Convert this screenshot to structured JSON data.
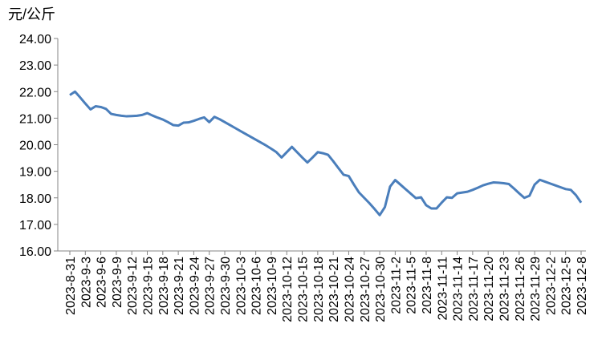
{
  "chart_data": {
    "type": "line",
    "y_label": "元/公斤",
    "categories": [
      "2023-8-31",
      null,
      null,
      "2023-9-3",
      null,
      null,
      "2023-9-6",
      null,
      null,
      "2023-9-9",
      null,
      null,
      "2023-9-12",
      null,
      null,
      "2023-9-15",
      null,
      null,
      "2023-9-18",
      null,
      null,
      "2023-9-21",
      null,
      null,
      "2023-9-24",
      null,
      null,
      "2023-9-27",
      null,
      null,
      "2023-9-30",
      null,
      null,
      "2023-10-3",
      null,
      null,
      "2023-10-6",
      null,
      null,
      "2023-10-9",
      null,
      null,
      "2023-10-12",
      null,
      null,
      "2023-10-15",
      null,
      null,
      "2023-10-18",
      null,
      null,
      "2023-10-21",
      null,
      null,
      "2023-10-24",
      null,
      null,
      "2023-10-27",
      null,
      null,
      "2023-10-30",
      null,
      null,
      "2023-11-2",
      null,
      null,
      "2023-11-5",
      null,
      null,
      "2023-11-8",
      null,
      null,
      "2023-11-11",
      null,
      null,
      "2023-11-14",
      null,
      null,
      "2023-11-17",
      null,
      null,
      "2023-11-20",
      null,
      null,
      "2023-11-23",
      null,
      null,
      "2023-11-26",
      null,
      null,
      "2023-11-29",
      null,
      null,
      "2023-12-2",
      null,
      null,
      "2023-12-5",
      null,
      null,
      "2023-12-8"
    ],
    "values": [
      21.87,
      22.0,
      21.78,
      21.55,
      21.33,
      21.45,
      21.42,
      21.35,
      21.16,
      21.12,
      21.09,
      21.07,
      21.08,
      21.09,
      21.12,
      21.19,
      21.1,
      21.02,
      20.95,
      20.85,
      20.74,
      20.72,
      20.83,
      20.84,
      20.9,
      20.97,
      21.03,
      20.85,
      21.05,
      20.96,
      20.85,
      20.74,
      20.63,
      20.52,
      20.41,
      20.3,
      20.19,
      20.08,
      19.97,
      19.85,
      19.72,
      19.52,
      19.72,
      19.92,
      19.72,
      19.52,
      19.33,
      19.52,
      19.72,
      19.68,
      19.62,
      19.38,
      19.12,
      18.87,
      18.82,
      18.5,
      18.2,
      18.0,
      17.8,
      17.58,
      17.35,
      17.65,
      18.42,
      18.67,
      18.5,
      18.33,
      18.16,
      17.99,
      18.02,
      17.72,
      17.6,
      17.6,
      17.82,
      18.02,
      18.0,
      18.17,
      18.2,
      18.23,
      18.3,
      18.38,
      18.47,
      18.53,
      18.58,
      18.57,
      18.55,
      18.52,
      18.35,
      18.17,
      18.0,
      18.08,
      18.5,
      18.68,
      18.61,
      18.54,
      18.47,
      18.4,
      18.33,
      18.3,
      18.1,
      17.82
    ],
    "color": "#4a7ebb",
    "ylim": [
      16,
      24
    ],
    "yticks": [
      {
        "value": 16,
        "label": "16.00"
      },
      {
        "value": 17,
        "label": "17.00"
      },
      {
        "value": 18,
        "label": "18.00"
      },
      {
        "value": 19,
        "label": "19.00"
      },
      {
        "value": 20,
        "label": "20.00"
      },
      {
        "value": 21,
        "label": "21.00"
      },
      {
        "value": 22,
        "label": "22.00"
      },
      {
        "value": 23,
        "label": "23.00"
      },
      {
        "value": 24,
        "label": "24.00"
      }
    ],
    "grid": false
  }
}
